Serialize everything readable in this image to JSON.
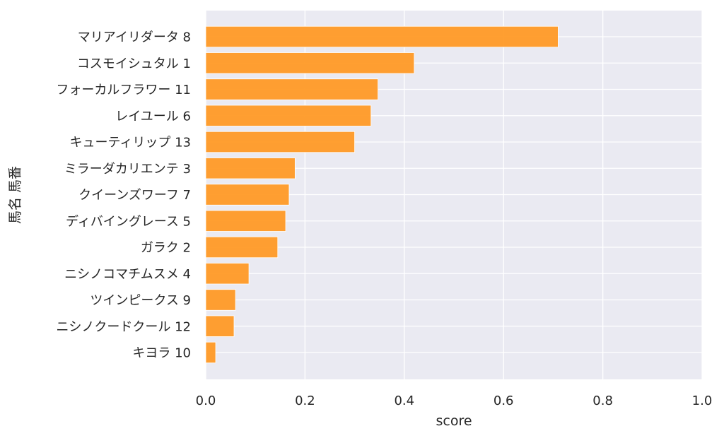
{
  "chart_data": {
    "type": "bar",
    "orientation": "horizontal",
    "categories": [
      "マリアイリダータ 8",
      "コスモイシュタル 1",
      "フォーカルフラワー 11",
      "レイユール 6",
      "キューティリップ 13",
      "ミラーダカリエンテ 3",
      "クイーンズワーフ 7",
      "ディバイングレース 5",
      "ガラク 2",
      "ニシノコマチムスメ 4",
      "ツインピークス 9",
      "ニシノクードクール 12",
      "キヨラ 10"
    ],
    "values": [
      0.71,
      0.42,
      0.347,
      0.333,
      0.3,
      0.18,
      0.168,
      0.161,
      0.145,
      0.087,
      0.06,
      0.057,
      0.02
    ],
    "xlabel": "score",
    "ylabel": "馬名 馬番",
    "xlim": [
      0,
      1.0
    ],
    "xticks": [
      "0.0",
      "0.2",
      "0.4",
      "0.6",
      "0.8",
      "1.0"
    ],
    "grid": true,
    "colors": {
      "bar": "#ff9a26",
      "plot_background": "#eaeaf2",
      "grid": "#ffffff"
    }
  }
}
